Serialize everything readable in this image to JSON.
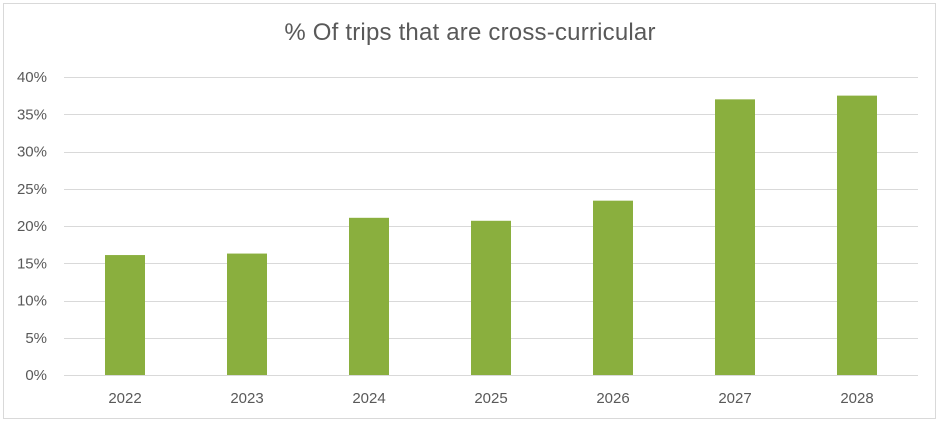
{
  "chart_data": {
    "type": "bar",
    "title": "% Of trips that are cross-curricular",
    "xlabel": "",
    "ylabel": "",
    "categories": [
      "2022",
      "2023",
      "2024",
      "2025",
      "2026",
      "2027",
      "2028"
    ],
    "values": [
      16.1,
      16.3,
      21.1,
      20.7,
      23.4,
      37.0,
      37.5
    ],
    "ylim": [
      0,
      40
    ],
    "y_ticks": [
      0,
      5,
      10,
      15,
      20,
      25,
      30,
      35,
      40
    ],
    "y_tick_format": "percent",
    "grid": true,
    "legend": "none",
    "colors": {
      "bar": "#8aaf3e",
      "grid": "#d9d9d9",
      "axis": "#d9d9d9",
      "text": "#595959"
    }
  }
}
